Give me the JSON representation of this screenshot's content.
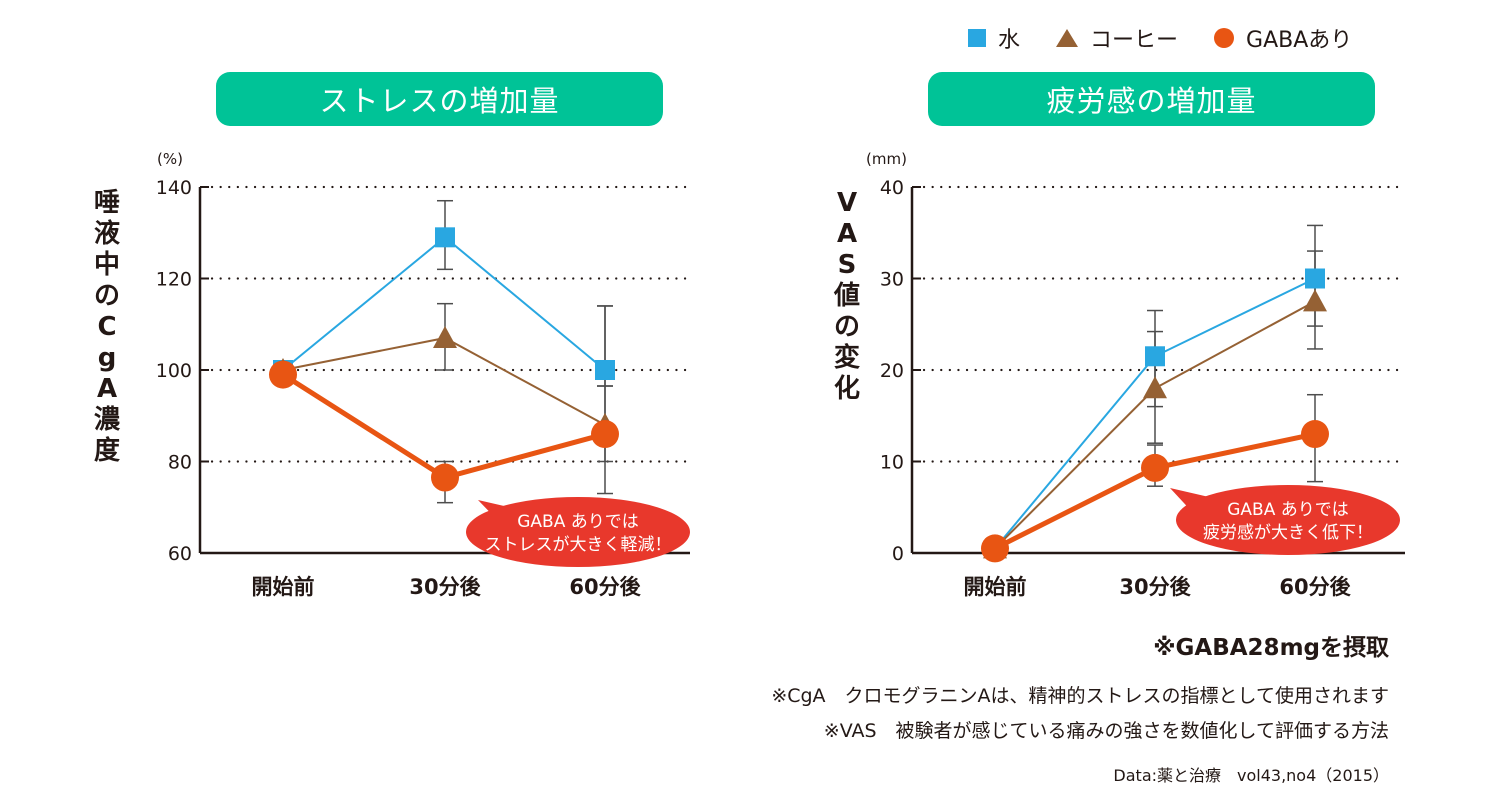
{
  "legend": [
    {
      "label": "水",
      "color": "#29a7e1",
      "marker": "square"
    },
    {
      "label": "コーヒー",
      "color": "#956134",
      "marker": "triangle"
    },
    {
      "label": "GABAあり",
      "color": "#e85513",
      "marker": "circle"
    }
  ],
  "colors": {
    "title_pill": "#00c397",
    "callout": "#e8382c",
    "axis": "#231815",
    "errorbar": "#4d4d4d"
  },
  "chart_data": [
    {
      "type": "line",
      "title": "ストレスの増加量",
      "ylabel": "唾液中のCgA濃度",
      "ylabel_chars": [
        "唾",
        "液",
        "中",
        "の",
        "C",
        "g",
        "A",
        "濃",
        "度"
      ],
      "yunit": "(%)",
      "xlabel": "",
      "categories": [
        "開始前",
        "30分後",
        "60分後"
      ],
      "ylim": [
        60,
        140
      ],
      "yticks": [
        60,
        80,
        100,
        120,
        140
      ],
      "grid": "dotted-horizontal",
      "series": [
        {
          "name": "水",
          "values": [
            100,
            129,
            100
          ],
          "error_low": [
            null,
            122,
            96.5
          ],
          "error_high": [
            null,
            137,
            114
          ]
        },
        {
          "name": "コーヒー",
          "values": [
            100,
            107,
            88
          ],
          "error_low": [
            null,
            100,
            80
          ],
          "error_high": [
            null,
            114.5,
            96.5
          ]
        },
        {
          "name": "GABAあり",
          "values": [
            99,
            76.5,
            86
          ],
          "error_low": [
            null,
            71,
            73
          ],
          "error_high": [
            null,
            80,
            114
          ]
        }
      ],
      "callout": [
        "GABA ありでは",
        "ストレスが大きく軽減！"
      ]
    },
    {
      "type": "line",
      "title": "疲労感の増加量",
      "ylabel": "VAS値の変化",
      "ylabel_chars": [
        "V",
        "A",
        "S",
        "値",
        "の",
        "変",
        "化"
      ],
      "yunit": "(mm)",
      "xlabel": "",
      "categories": [
        "開始前",
        "30分後",
        "60分後"
      ],
      "ylim": [
        0,
        40
      ],
      "yticks": [
        0,
        10,
        20,
        30,
        40
      ],
      "grid": "dotted-horizontal",
      "series": [
        {
          "name": "水",
          "values": [
            0.5,
            21.5,
            30
          ],
          "error_low": [
            null,
            16,
            24.8
          ],
          "error_high": [
            null,
            26.5,
            35.8
          ]
        },
        {
          "name": "コーヒー",
          "values": [
            0.5,
            18,
            27.5
          ],
          "error_low": [
            null,
            12,
            22.3
          ],
          "error_high": [
            null,
            24.2,
            33
          ]
        },
        {
          "name": "GABAあり",
          "values": [
            0.5,
            9.3,
            13
          ],
          "error_low": [
            null,
            7.3,
            7.8
          ],
          "error_high": [
            null,
            11.8,
            17.3
          ]
        }
      ],
      "callout": [
        "GABA ありでは",
        "疲労感が大きく低下！"
      ]
    }
  ],
  "notes": {
    "intake": "※GABA28mgを摂取",
    "cga": "※CgA　クロモグラニンAは、精神的ストレスの指標として使用されます",
    "vas": "※VAS　被験者が感じている痛みの強さを数値化して評価する方法",
    "source": "Data:薬と治療　vol43,no4（2015）"
  }
}
